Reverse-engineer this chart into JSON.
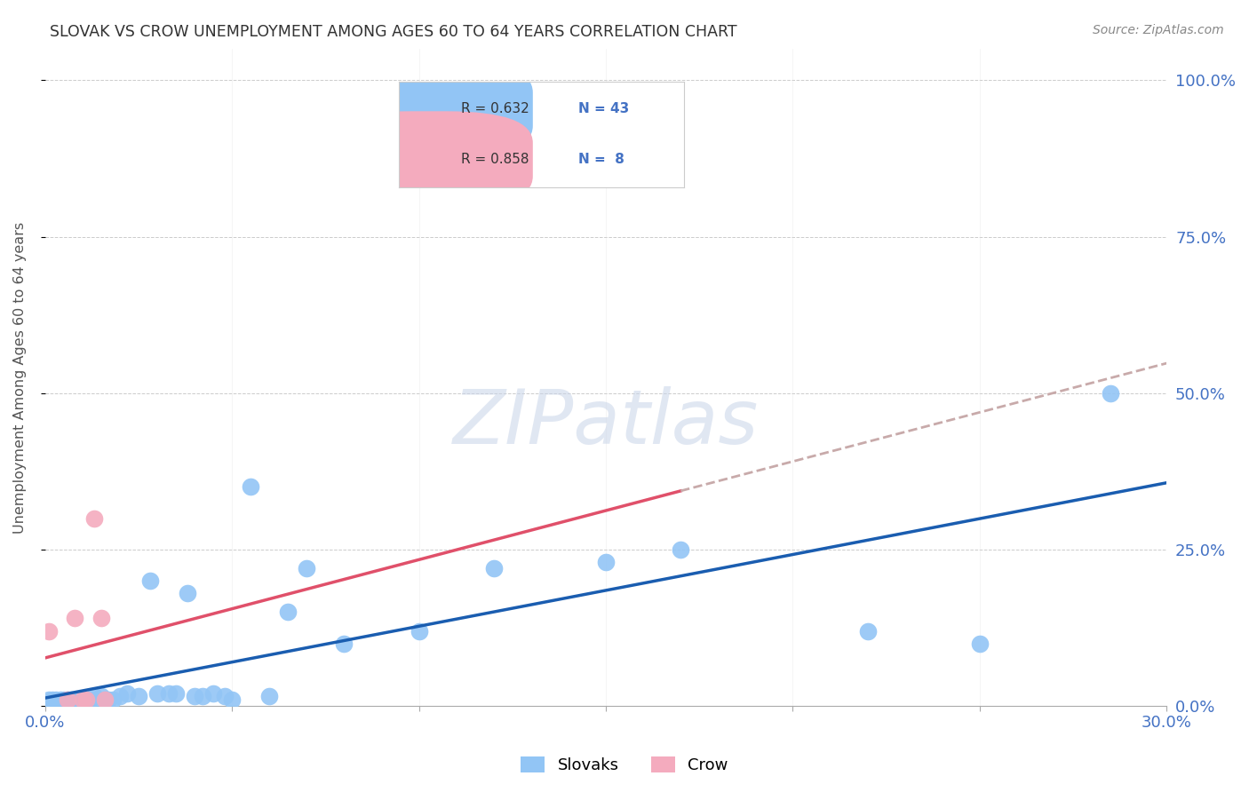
{
  "title": "SLOVAK VS CROW UNEMPLOYMENT AMONG AGES 60 TO 64 YEARS CORRELATION CHART",
  "source": "Source: ZipAtlas.com",
  "ylabel": "Unemployment Among Ages 60 to 64 years",
  "ytick_vals": [
    0.0,
    0.25,
    0.5,
    0.75,
    1.0
  ],
  "ytick_labels": [
    "0.0%",
    "25.0%",
    "50.0%",
    "75.0%",
    "100.0%"
  ],
  "xlim": [
    0.0,
    0.3
  ],
  "ylim": [
    0.0,
    1.05
  ],
  "slovak_color": "#92C5F5",
  "crow_color": "#F4ABBE",
  "slovak_line_color": "#1A5DB0",
  "crow_line_color": "#E0506A",
  "crow_dash_color": "#C8AAAA",
  "tick_color": "#4472C4",
  "watermark_text": "ZIPatlas",
  "background_color": "#FFFFFF",
  "slovak_label": "Slovaks",
  "crow_label": "Crow",
  "legend_r1": "R = 0.632",
  "legend_n1": "N = 43",
  "legend_r2": "R = 0.858",
  "legend_n2": "N =  8",
  "slovak_x": [
    0.001,
    0.002,
    0.003,
    0.004,
    0.005,
    0.006,
    0.007,
    0.008,
    0.009,
    0.01,
    0.011,
    0.012,
    0.013,
    0.014,
    0.015,
    0.016,
    0.017,
    0.018,
    0.02,
    0.022,
    0.025,
    0.028,
    0.03,
    0.033,
    0.035,
    0.038,
    0.04,
    0.042,
    0.045,
    0.048,
    0.05,
    0.055,
    0.06,
    0.065,
    0.07,
    0.08,
    0.1,
    0.12,
    0.15,
    0.17,
    0.22,
    0.25,
    0.285
  ],
  "slovak_y": [
    0.01,
    0.01,
    0.01,
    0.01,
    0.01,
    0.01,
    0.01,
    0.01,
    0.01,
    0.01,
    0.01,
    0.01,
    0.015,
    0.01,
    0.015,
    0.01,
    0.01,
    0.01,
    0.015,
    0.02,
    0.015,
    0.2,
    0.02,
    0.02,
    0.02,
    0.18,
    0.015,
    0.015,
    0.02,
    0.015,
    0.01,
    0.35,
    0.015,
    0.15,
    0.22,
    0.1,
    0.12,
    0.22,
    0.23,
    0.25,
    0.12,
    0.1,
    0.5
  ],
  "crow_x": [
    0.001,
    0.006,
    0.008,
    0.01,
    0.011,
    0.013,
    0.015,
    0.016
  ],
  "crow_y": [
    0.12,
    0.01,
    0.14,
    0.01,
    0.01,
    0.3,
    0.14,
    0.01
  ],
  "figsize": [
    14.06,
    8.92
  ],
  "dpi": 100
}
